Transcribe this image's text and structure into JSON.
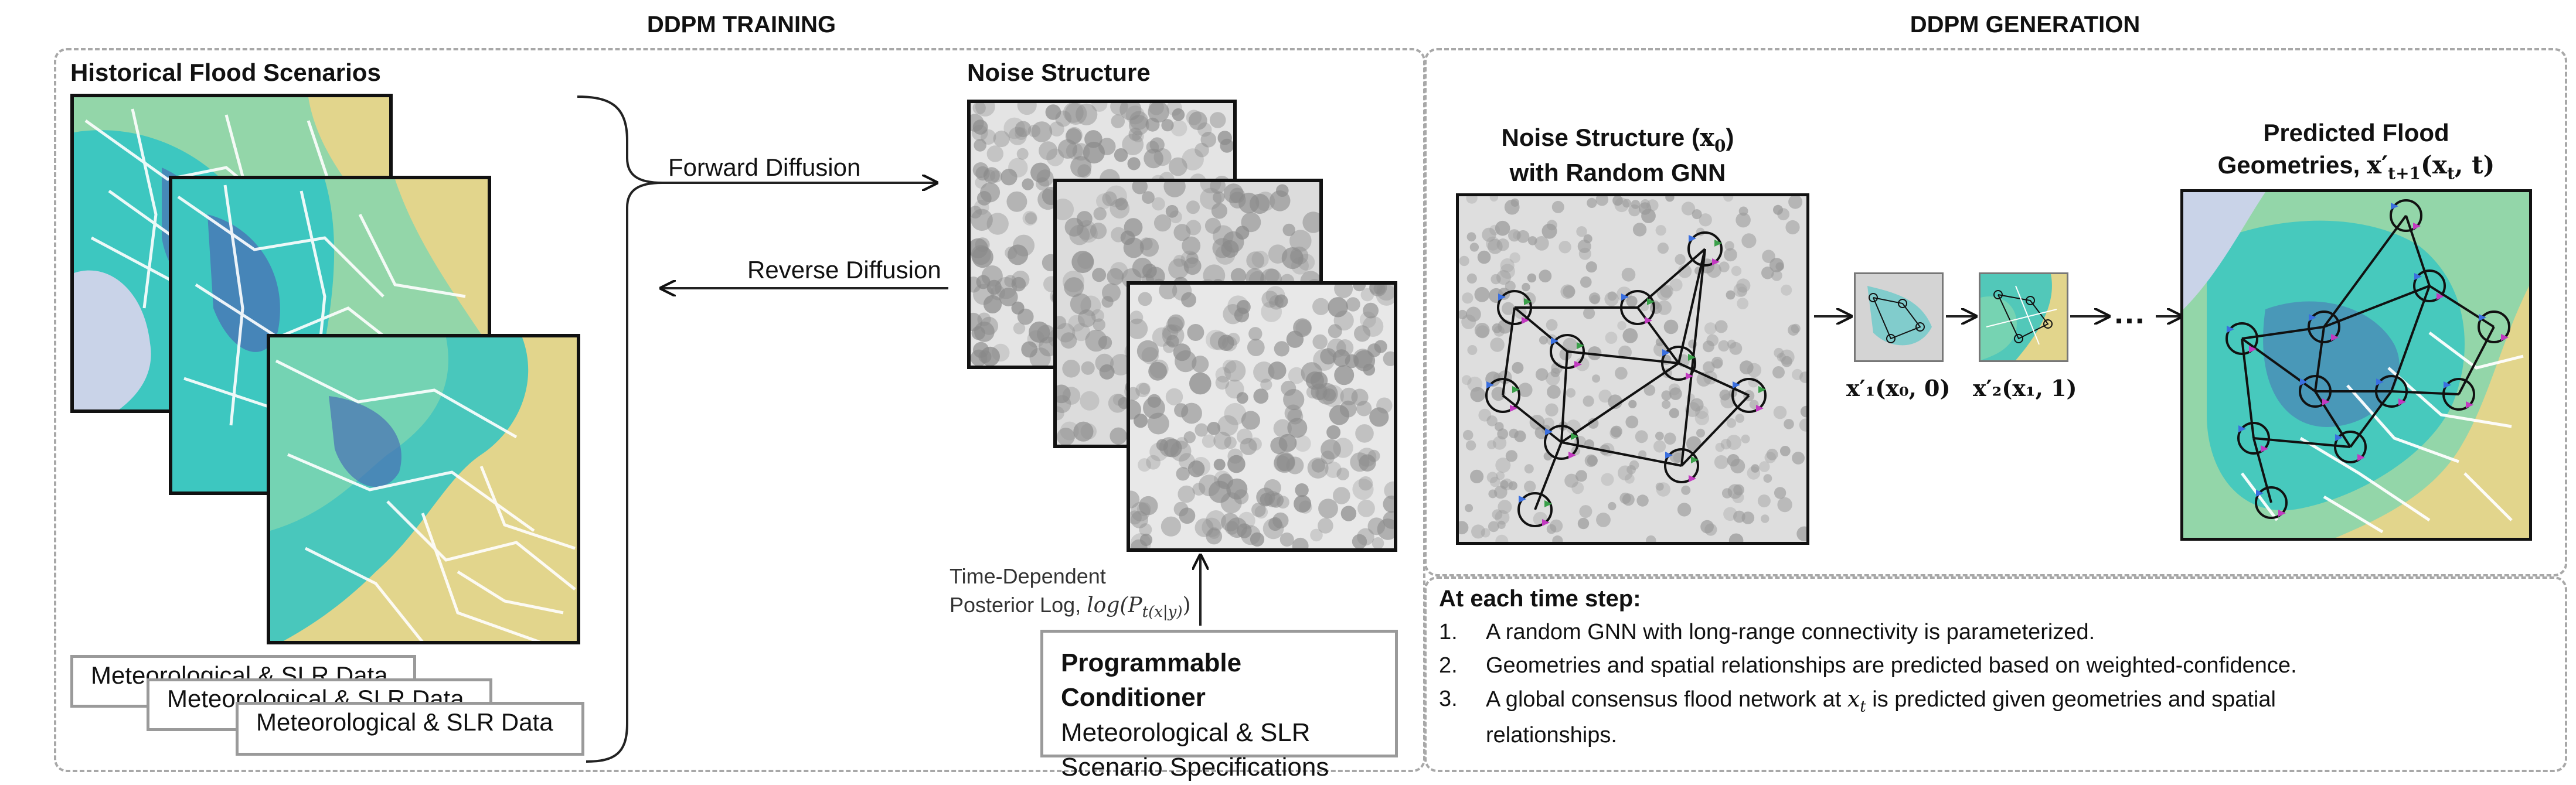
{
  "training": {
    "title": "DDPM TRAINING",
    "historical_label": "Historical Flood Scenarios",
    "noise_label": "Noise Structure",
    "forward_label": "Forward Diffusion",
    "reverse_label": "Reverse Diffusion",
    "data_boxes": [
      "Meteorological & SLR Data",
      "Meteorological & SLR Data",
      "Meteorological & SLR Data"
    ],
    "posterior_line1": "Time-Dependent",
    "posterior_line2": "Posterior Log,",
    "posterior_math": "log(P",
    "posterior_sub": "t(x|y)",
    "conditioner_title": "Programmable Conditioner",
    "conditioner_line1": "Meteorological & SLR",
    "conditioner_line2": "Scenario Specifications"
  },
  "generation": {
    "title": "DDPM GENERATION",
    "noise_label_line1": "Noise Structure (",
    "noise_label_math": "x",
    "noise_label_sub": "0",
    "noise_label_line2": "with Random GNN",
    "predicted_line1": "Predicted Flood",
    "predicted_line2": "Geometries,",
    "predicted_math": "x′",
    "predicted_sub": "t+1",
    "predicted_args": "(x",
    "predicted_args_sub": "t",
    "predicted_args_end": ", t)",
    "step1_label": "x′₁(x₀, 0)",
    "step2_label": "x′₂(x₁, 1)",
    "ellipsis": "…",
    "timestep_title": "At each time step:",
    "timestep_items": [
      {
        "num": "1.",
        "text": "A random GNN with long-range connectivity is parameterized."
      },
      {
        "num": "2.",
        "text": "Geometries and spatial relationships are predicted based on weighted-confidence."
      },
      {
        "num": "3.",
        "text_a": "A global consensus flood network at ",
        "text_math": "x",
        "text_sub": "t",
        "text_b": " is predicted given geometries and spatial relationships."
      }
    ]
  },
  "colors": {
    "flood_dark": "#4a6fb5",
    "flood_cyan": "#2ec4c4",
    "flood_green": "#7fd6b0",
    "land_yellow": "#e2d58c",
    "water_gray": "#c9d3e8",
    "noise_bg": "#e4e4e4",
    "noise_dot": "#8a8a8a"
  }
}
